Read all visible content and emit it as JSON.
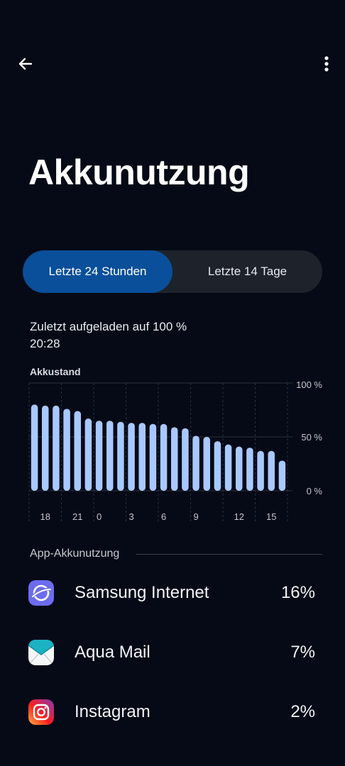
{
  "page": {
    "title": "Akkunutzung"
  },
  "tabs": [
    {
      "label": "Letzte 24 Stunden",
      "active": true
    },
    {
      "label": "Letzte 14 Tage",
      "active": false
    }
  ],
  "last_charged": {
    "line1": "Zuletzt aufgeladen auf 100 %",
    "line2": "20:28"
  },
  "colors": {
    "accent": "#0a4f9a",
    "bar": "#a9c8ff",
    "background": "#050a16"
  },
  "chart_data": {
    "type": "bar",
    "title": "Akkustand",
    "ylim": [
      0,
      100
    ],
    "y_ticks": [
      "100 %",
      "50 %",
      "0 %"
    ],
    "x_tick_labels": [
      "18",
      "21",
      "0",
      "3",
      "6",
      "9",
      "12",
      "15"
    ],
    "values": [
      80,
      79,
      79,
      76,
      74,
      67,
      65,
      65,
      64,
      63,
      63,
      62,
      62,
      59,
      58,
      51,
      50,
      46,
      43,
      41,
      40,
      37,
      37,
      28
    ],
    "grid": true
  },
  "app_section": {
    "label": "App-Akkunutzung"
  },
  "apps": [
    {
      "name": "Samsung Internet",
      "percent": "16%",
      "icon": "samsung-internet-icon"
    },
    {
      "name": "Aqua Mail",
      "percent": "7%",
      "icon": "aqua-mail-icon"
    },
    {
      "name": "Instagram",
      "percent": "2%",
      "icon": "instagram-icon"
    }
  ]
}
